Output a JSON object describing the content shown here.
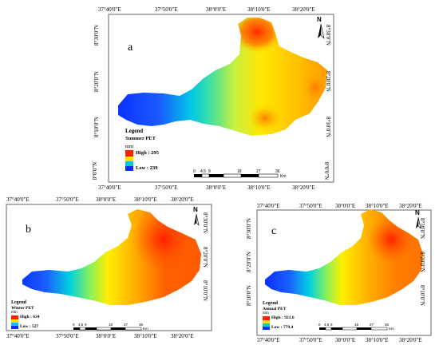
{
  "panels": {
    "a": {
      "letter": "a",
      "lon_labels": [
        "37°40'0\"E",
        "37°50'0\"E",
        "38°0'0\"E",
        "38°10'0\"E",
        "38°20'0\"E"
      ],
      "lat_labels": [
        "8°30'0\"N",
        "8°20'0\"N",
        "8°10'0\"N",
        "8°0'0\"N"
      ],
      "legend_title": "Legend",
      "legend_var": "Summer PET",
      "legend_unit": "mm",
      "legend_high": "High : 295",
      "legend_low": "Low : 239",
      "scale_ticks": [
        "0",
        "4.5",
        "9",
        "18",
        "27",
        "36"
      ],
      "scale_unit": "Km",
      "north": "N"
    },
    "b": {
      "letter": "b",
      "lon_labels": [
        "37°40'0\"E",
        "37°50'0\"E",
        "38°0'0\"E",
        "38°10'0\"E",
        "38°20'0\"E"
      ],
      "lat_labels": [
        "8°30'0\"N",
        "8°20'0\"N",
        "8°10'0\"N"
      ],
      "legend_title": "Legend",
      "legend_var": "Winter PET",
      "legend_unit": "mm",
      "legend_high": "High : 634",
      "legend_low": "Low : 527",
      "scale_ticks": [
        "0",
        "4.5",
        "9",
        "18",
        "27",
        "36"
      ],
      "scale_unit": "Km",
      "north": "N"
    },
    "c": {
      "letter": "c",
      "lon_labels": [
        "37°40'0\"E",
        "37°50'0\"E",
        "38°0'0\"E",
        "38°10'0\"E",
        "38°20'0\"E"
      ],
      "lat_labels": [
        "8°30'0\"N",
        "8°20'0\"N",
        "8°10'0\"N"
      ],
      "legend_title": "Legend",
      "legend_var": "Annual PET",
      "legend_unit": "mm",
      "legend_high": "High : 921.6",
      "legend_low": "Low : 779.4",
      "scale_ticks": [
        "0",
        "4.5",
        "9",
        "18",
        "27",
        "36"
      ],
      "scale_unit": "Km",
      "north": "N"
    }
  },
  "colors": {
    "high": "#ff0000",
    "mid": "#ffff00",
    "low": "#0033ff"
  }
}
